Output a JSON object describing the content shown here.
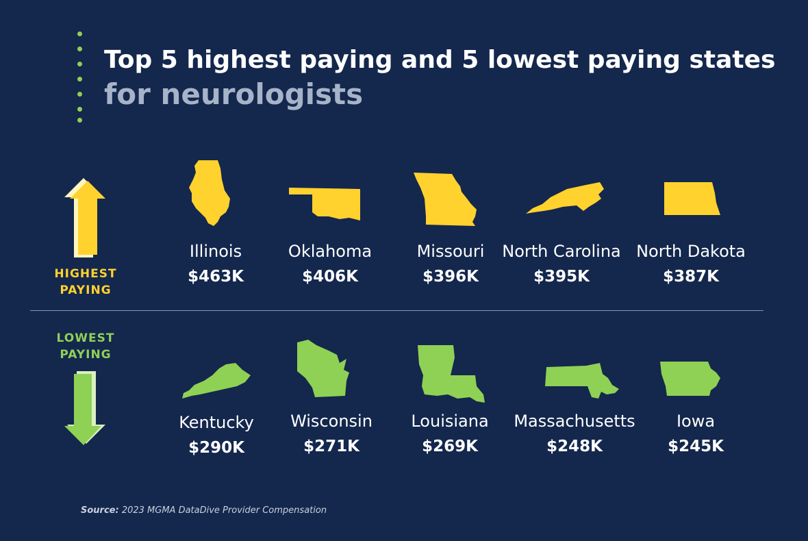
{
  "title": {
    "line1": "Top 5 highest paying and 5 lowest paying states",
    "line2": "for neurologists"
  },
  "highest": {
    "label_line1": "HIGHEST",
    "label_line2": "PAYING",
    "color": "#ffd22e",
    "states": [
      {
        "name": "Illinois",
        "value": "$463K"
      },
      {
        "name": "Oklahoma",
        "value": "$406K"
      },
      {
        "name": "Missouri",
        "value": "$396K"
      },
      {
        "name": "North Carolina",
        "value": "$395K"
      },
      {
        "name": "North Dakota",
        "value": "$387K"
      }
    ]
  },
  "lowest": {
    "label_line1": "LOWEST",
    "label_line2": "PAYING",
    "color": "#8fd155",
    "states": [
      {
        "name": "Kentucky",
        "value": "$290K"
      },
      {
        "name": "Wisconsin",
        "value": "$271K"
      },
      {
        "name": "Louisiana",
        "value": "$269K"
      },
      {
        "name": "Massachusetts",
        "value": "$248K"
      },
      {
        "name": "Iowa",
        "value": "$245K"
      }
    ]
  },
  "source": {
    "label": "Source:",
    "text": "2023 MGMA DataDive Provider Compensation"
  },
  "colors": {
    "background": "#14274d",
    "accent_dots": "#8fd155"
  }
}
